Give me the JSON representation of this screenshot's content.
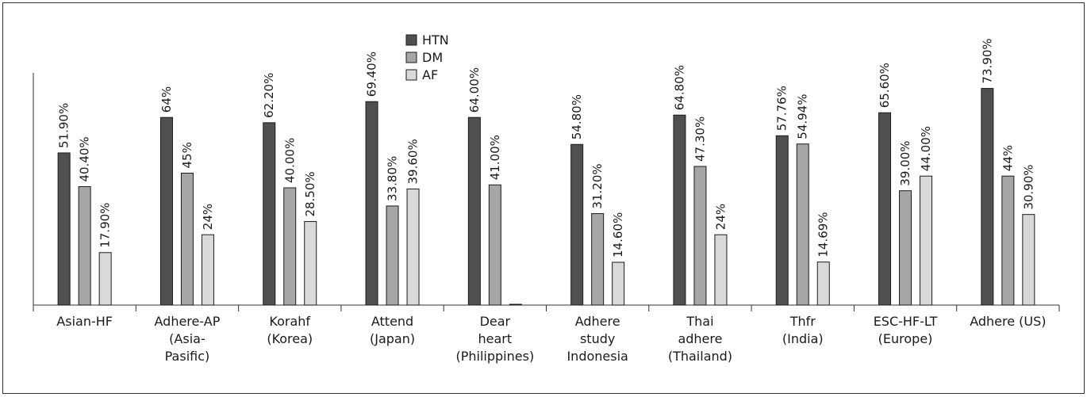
{
  "chart_data": {
    "type": "bar",
    "categories": [
      [
        "Asian-HF"
      ],
      [
        "Adhere-AP",
        "(Asia-",
        "Pasific)"
      ],
      [
        "Korahf",
        "(Korea)"
      ],
      [
        "Attend",
        "(Japan)"
      ],
      [
        "Dear",
        "heart",
        "(Philippines)"
      ],
      [
        "Adhere",
        "study",
        "Indonesia"
      ],
      [
        "Thai",
        "adhere",
        "(Thailand)"
      ],
      [
        "Thfr",
        "(India)"
      ],
      [
        "ESC-HF-LT",
        "(Europe)"
      ],
      [
        "Adhere (US)"
      ]
    ],
    "series": [
      {
        "name": "HTN",
        "color": "#505050",
        "values": [
          51.9,
          64,
          62.2,
          69.4,
          64.0,
          54.8,
          64.8,
          57.76,
          65.6,
          73.9
        ],
        "labels": [
          "51.90%",
          "64%",
          "62.20%",
          "69.40%",
          "64.00%",
          "54.80%",
          "64.80%",
          "57.76%",
          "65.60%",
          "73.90%"
        ]
      },
      {
        "name": "DM",
        "color": "#a6a6a6",
        "values": [
          40.4,
          45,
          40.0,
          33.8,
          41.0,
          31.2,
          47.3,
          54.94,
          39.0,
          44
        ],
        "labels": [
          "40.40%",
          "45%",
          "40.00%",
          "33.80%",
          "41.00%",
          "31.20%",
          "47.30%",
          "54.94%",
          "39.00%",
          "44%"
        ]
      },
      {
        "name": "AF",
        "color": "#d9d9d9",
        "values": [
          17.9,
          24,
          28.5,
          39.6,
          0,
          14.6,
          24,
          14.69,
          44.0,
          30.9
        ],
        "labels": [
          "17.90%",
          "24%",
          "28.50%",
          "39.60%",
          "",
          "14.60%",
          "24%",
          "14.69%",
          "44.00%",
          "30.90%"
        ]
      }
    ],
    "ylim": [
      0,
      100
    ],
    "legend": "top-center",
    "grid": false
  }
}
